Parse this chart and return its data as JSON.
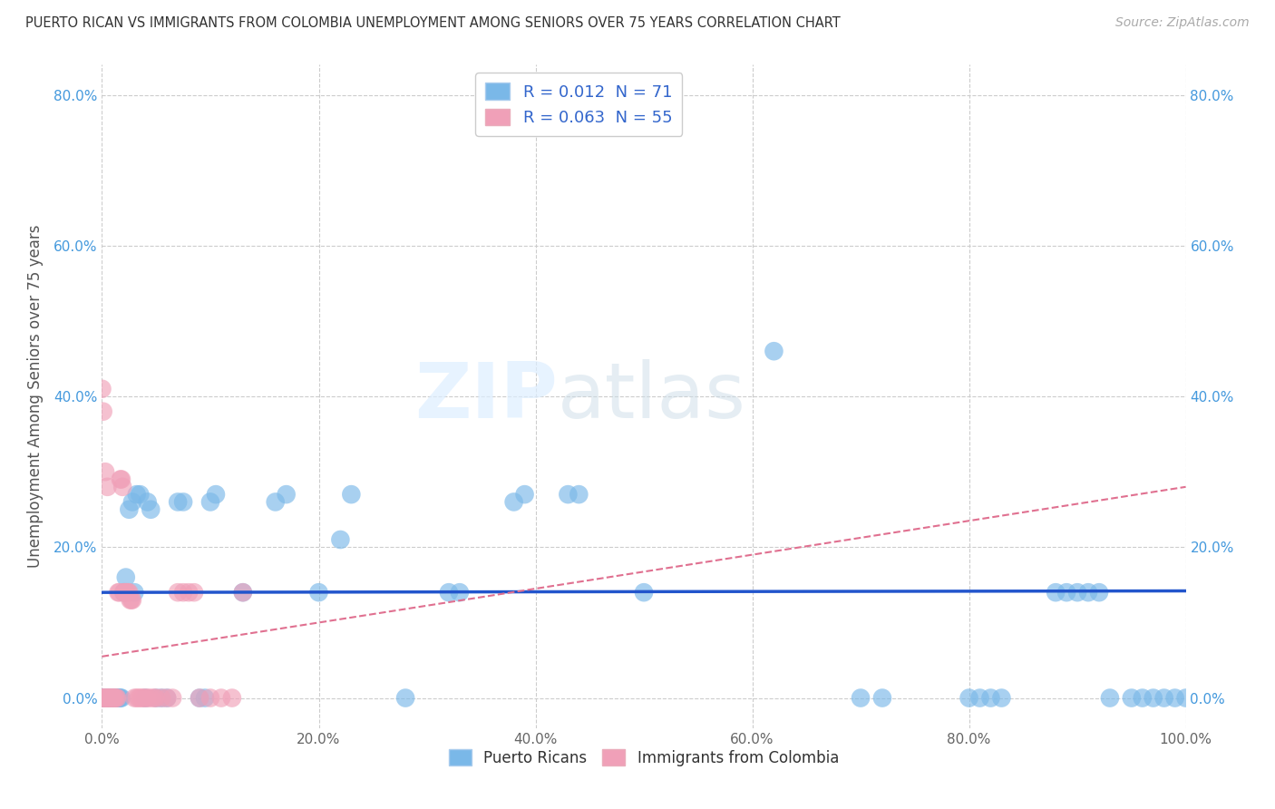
{
  "title": "PUERTO RICAN VS IMMIGRANTS FROM COLOMBIA UNEMPLOYMENT AMONG SENIORS OVER 75 YEARS CORRELATION CHART",
  "source": "Source: ZipAtlas.com",
  "ylabel": "Unemployment Among Seniors over 75 years",
  "xlim": [
    0.0,
    1.0
  ],
  "ylim": [
    -0.04,
    0.84
  ],
  "x_ticks": [
    0.0,
    0.2,
    0.4,
    0.6,
    0.8,
    1.0
  ],
  "x_tick_labels": [
    "0.0%",
    "20.0%",
    "40.0%",
    "60.0%",
    "80.0%",
    "100.0%"
  ],
  "y_ticks": [
    0.0,
    0.2,
    0.4,
    0.6,
    0.8
  ],
  "y_tick_labels": [
    "0.0%",
    "20.0%",
    "40.0%",
    "60.0%",
    "80.0%"
  ],
  "legend1_label": "R = 0.012  N = 71",
  "legend2_label": "R = 0.063  N = 55",
  "blue_color": "#7ab8e8",
  "pink_color": "#f0a0b8",
  "blue_line_color": "#2255cc",
  "pink_line_color": "#e07090",
  "watermark_zip": "ZIP",
  "watermark_atlas": "atlas",
  "background_color": "#ffffff",
  "grid_color": "#cccccc",
  "blue_scatter_x": [
    0.003,
    0.004,
    0.005,
    0.006,
    0.007,
    0.008,
    0.009,
    0.01,
    0.011,
    0.012,
    0.013,
    0.014,
    0.015,
    0.016,
    0.017,
    0.018,
    0.02,
    0.022,
    0.025,
    0.028,
    0.03,
    0.032,
    0.035,
    0.04,
    0.042,
    0.045,
    0.05,
    0.055,
    0.06,
    0.07,
    0.075,
    0.09,
    0.095,
    0.1,
    0.105,
    0.13,
    0.16,
    0.17,
    0.2,
    0.22,
    0.23,
    0.28,
    0.32,
    0.33,
    0.38,
    0.39,
    0.43,
    0.44,
    0.5,
    0.62,
    0.7,
    0.72,
    0.8,
    0.81,
    0.82,
    0.83,
    0.88,
    0.89,
    0.9,
    0.91,
    0.92,
    0.93,
    0.95,
    0.96,
    0.97,
    0.98,
    0.99,
    1.0,
    0.0,
    0.001,
    0.002
  ],
  "blue_scatter_y": [
    0.0,
    0.0,
    0.0,
    0.0,
    0.0,
    0.0,
    0.0,
    0.0,
    0.0,
    0.0,
    0.0,
    0.0,
    0.0,
    0.0,
    0.0,
    0.0,
    0.14,
    0.16,
    0.25,
    0.26,
    0.14,
    0.27,
    0.27,
    0.0,
    0.26,
    0.25,
    0.0,
    0.0,
    0.0,
    0.26,
    0.26,
    0.0,
    0.0,
    0.26,
    0.27,
    0.14,
    0.26,
    0.27,
    0.14,
    0.21,
    0.27,
    0.0,
    0.14,
    0.14,
    0.26,
    0.27,
    0.27,
    0.27,
    0.14,
    0.46,
    0.0,
    0.0,
    0.0,
    0.0,
    0.0,
    0.0,
    0.14,
    0.14,
    0.14,
    0.14,
    0.14,
    0.0,
    0.0,
    0.0,
    0.0,
    0.0,
    0.0,
    0.0,
    0.0,
    0.0,
    0.0
  ],
  "pink_scatter_x": [
    0.0,
    0.001,
    0.002,
    0.003,
    0.004,
    0.005,
    0.006,
    0.007,
    0.008,
    0.009,
    0.01,
    0.011,
    0.012,
    0.013,
    0.014,
    0.015,
    0.016,
    0.017,
    0.018,
    0.019,
    0.02,
    0.021,
    0.022,
    0.023,
    0.024,
    0.025,
    0.026,
    0.027,
    0.028,
    0.03,
    0.032,
    0.034,
    0.036,
    0.038,
    0.04,
    0.042,
    0.045,
    0.048,
    0.05,
    0.055,
    0.06,
    0.065,
    0.07,
    0.075,
    0.08,
    0.085,
    0.09,
    0.1,
    0.11,
    0.12,
    0.13,
    0.0,
    0.001,
    0.003,
    0.005
  ],
  "pink_scatter_y": [
    0.0,
    0.0,
    0.0,
    0.0,
    0.0,
    0.0,
    0.0,
    0.0,
    0.0,
    0.0,
    0.0,
    0.0,
    0.0,
    0.0,
    0.0,
    0.14,
    0.14,
    0.29,
    0.29,
    0.28,
    0.14,
    0.14,
    0.14,
    0.14,
    0.14,
    0.14,
    0.13,
    0.13,
    0.13,
    0.0,
    0.0,
    0.0,
    0.0,
    0.0,
    0.0,
    0.0,
    0.0,
    0.0,
    0.0,
    0.0,
    0.0,
    0.0,
    0.14,
    0.14,
    0.14,
    0.14,
    0.0,
    0.0,
    0.0,
    0.0,
    0.14,
    0.41,
    0.38,
    0.3,
    0.28
  ],
  "blue_trend_y": [
    0.14,
    0.142
  ],
  "pink_trend_y": [
    0.055,
    0.28
  ],
  "blue_N": 71,
  "pink_N": 55
}
